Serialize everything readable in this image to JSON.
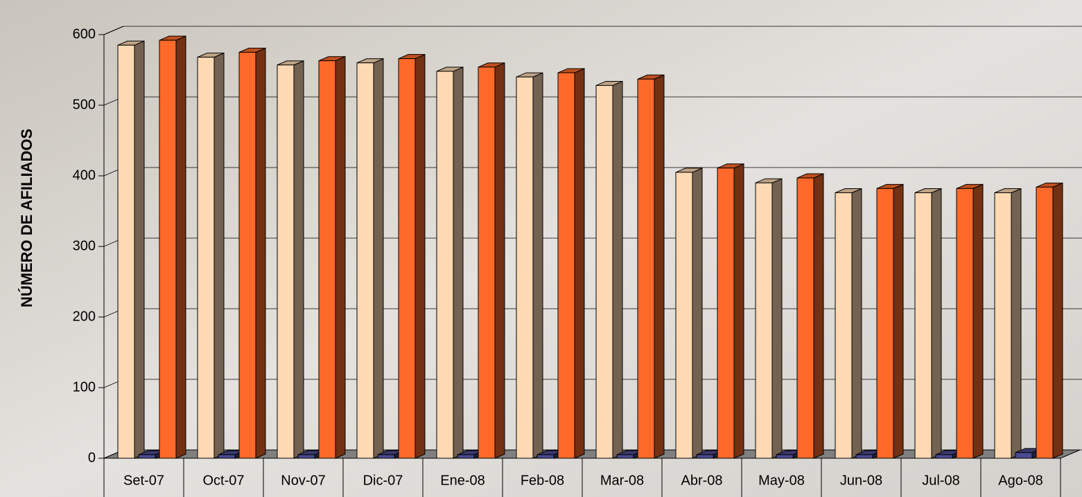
{
  "chart_data": {
    "type": "bar3d",
    "y_axis_label": "NÚMERO DE AFILIADOS",
    "categories": [
      "Set-07",
      "Oct-07",
      "Nov-07",
      "Dic-07",
      "Ene-08",
      "Feb-08",
      "Mar-08",
      "Abr-08",
      "May-08",
      "Jun-08",
      "Jul-08",
      "Ago-08"
    ],
    "series": [
      {
        "color": "#ffd9b3",
        "values": [
          585,
          568,
          557,
          560,
          548,
          540,
          528,
          405,
          390,
          376,
          376,
          376
        ]
      },
      {
        "color": "#4a4a90",
        "values": [
          5,
          5,
          5,
          5,
          5,
          5,
          5,
          5,
          5,
          5,
          5,
          8
        ]
      },
      {
        "color": "#ff6a2a",
        "values": [
          592,
          575,
          563,
          566,
          554,
          546,
          537,
          411,
          397,
          382,
          382,
          384
        ]
      }
    ],
    "ylim": [
      0,
      600
    ],
    "yticks": [
      0,
      100,
      200,
      300,
      400,
      500,
      600
    ],
    "grid": true
  }
}
